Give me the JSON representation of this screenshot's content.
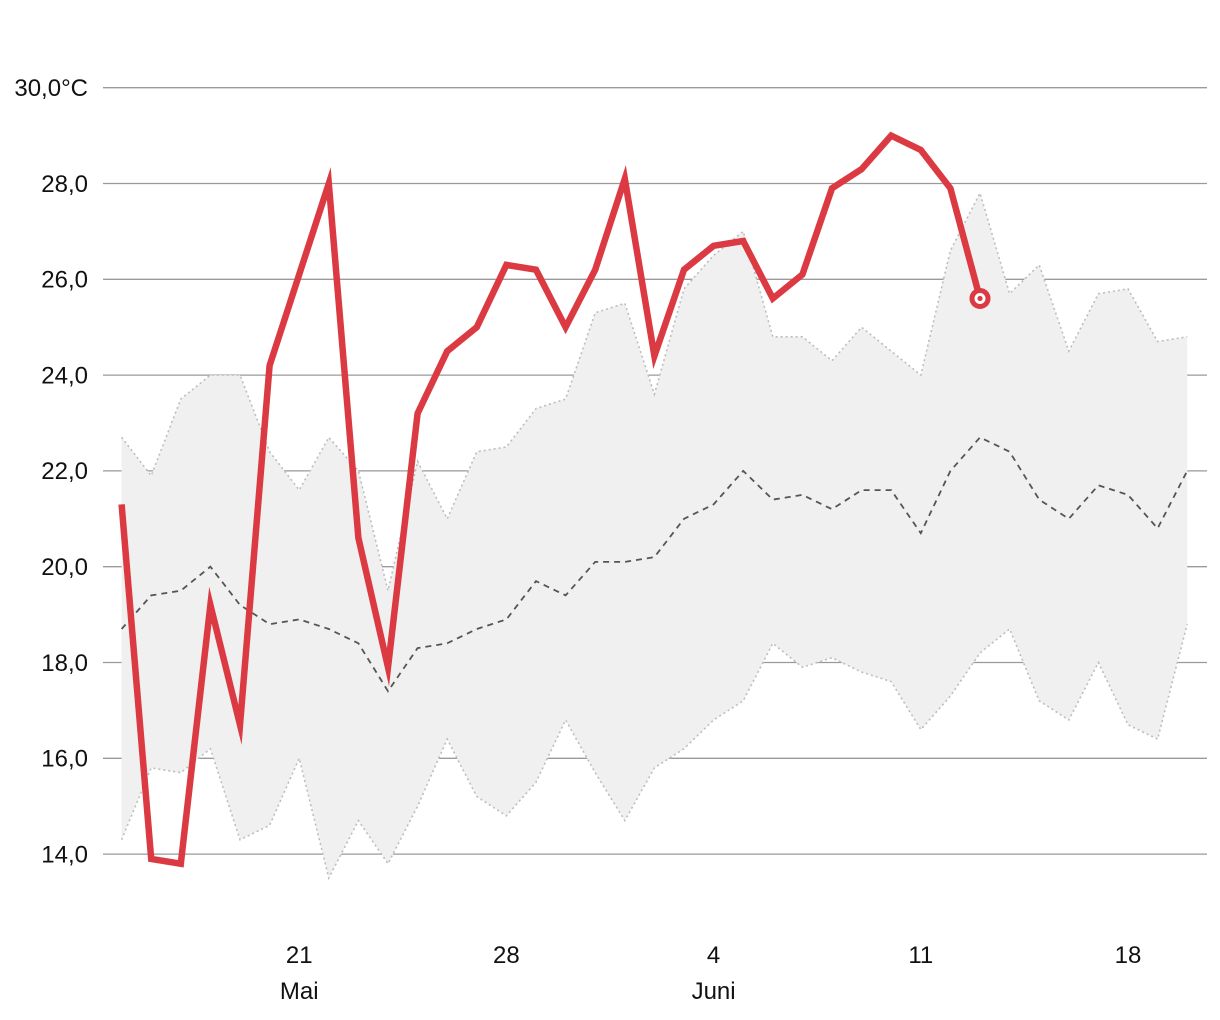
{
  "chart_data": {
    "type": "line",
    "title": "",
    "xlabel": "",
    "ylabel": "",
    "ylim": [
      13.2,
      30.8
    ],
    "grid": true,
    "y_ticks": [
      {
        "value": 30,
        "label": "30,0°C"
      },
      {
        "value": 28,
        "label": "28,0"
      },
      {
        "value": 26,
        "label": "26,0"
      },
      {
        "value": 24,
        "label": "24,0"
      },
      {
        "value": 22,
        "label": "22,0"
      },
      {
        "value": 20,
        "label": "20,0"
      },
      {
        "value": 18,
        "label": "18,0"
      },
      {
        "value": 16,
        "label": "16,0"
      },
      {
        "value": 14,
        "label": "14,0"
      }
    ],
    "x_ticks": [
      {
        "day": 21,
        "label": "21",
        "month_label": "Mai"
      },
      {
        "day": 28,
        "label": "28",
        "month_label": ""
      },
      {
        "day": 35,
        "label": "4",
        "month_label": "Juni"
      },
      {
        "day": 42,
        "label": "11",
        "month_label": ""
      },
      {
        "day": 49,
        "label": "18",
        "month_label": ""
      }
    ],
    "x_range": [
      15,
      51
    ],
    "range_band": {
      "start_day": 15,
      "upper": [
        22.7,
        21.9,
        23.5,
        24.0,
        24.0,
        22.4,
        21.6,
        22.7,
        22.0,
        19.5,
        22.2,
        21.0,
        22.4,
        22.5,
        23.3,
        23.5,
        25.3,
        25.5,
        23.6,
        25.8,
        26.5,
        27.0,
        24.8,
        24.8,
        24.3,
        25.0,
        24.5,
        24.0,
        26.6,
        27.8,
        25.7,
        26.3,
        24.5,
        25.7,
        25.8,
        24.7,
        24.8
      ],
      "lower": [
        14.3,
        15.8,
        15.7,
        16.2,
        14.3,
        14.6,
        16.0,
        13.5,
        14.7,
        13.8,
        15.0,
        16.4,
        15.2,
        14.8,
        15.5,
        16.8,
        15.7,
        14.7,
        15.8,
        16.2,
        16.8,
        17.2,
        18.4,
        17.9,
        18.1,
        17.8,
        17.6,
        16.6,
        17.3,
        18.2,
        18.7,
        17.2,
        16.8,
        18.0,
        16.7,
        16.4,
        18.8
      ]
    },
    "series": [
      {
        "role": "mean",
        "color": "#555555",
        "style": "dashed",
        "start_day": 15,
        "values": [
          18.7,
          19.4,
          19.5,
          20.0,
          19.2,
          18.8,
          18.9,
          18.7,
          18.4,
          17.4,
          18.3,
          18.4,
          18.7,
          18.9,
          19.7,
          19.4,
          20.1,
          20.1,
          20.2,
          21.0,
          21.3,
          22.0,
          21.4,
          21.5,
          21.2,
          21.6,
          21.6,
          20.7,
          22.0,
          22.7,
          22.4,
          21.4,
          21.0,
          21.7,
          21.5,
          20.8,
          22.0
        ]
      },
      {
        "role": "observed",
        "color": "#dc3a43",
        "style": "solid",
        "start_day": 15,
        "values": [
          21.3,
          13.9,
          13.8,
          19.2,
          16.7,
          24.2,
          26.1,
          28.0,
          20.6,
          17.9,
          23.2,
          24.5,
          25.0,
          26.3,
          26.2,
          25.0,
          26.2,
          28.1,
          24.4,
          26.2,
          26.7,
          26.8,
          25.6,
          26.1,
          27.9,
          28.3,
          29.0,
          28.7,
          27.9,
          25.6
        ]
      }
    ]
  }
}
